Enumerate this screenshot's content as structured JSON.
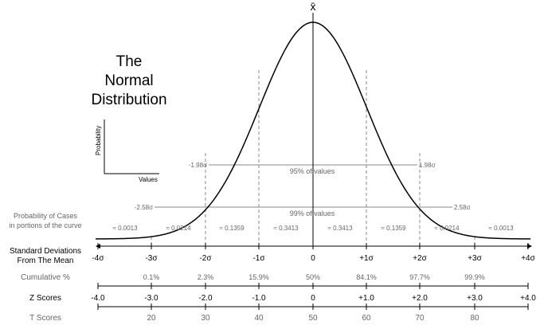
{
  "title": {
    "line1": "The",
    "line2": "Normal",
    "line3": "Distribution"
  },
  "mean_symbol": "x̄",
  "mini_axes": {
    "ylabel": "Probability",
    "xlabel": "Values"
  },
  "intervals": {
    "i95": {
      "left": "-1.98σ",
      "right": "1.98σ",
      "label": "95% of values"
    },
    "i99": {
      "left": "-2.58σ",
      "right": "2.58σ",
      "label": "99% of values"
    }
  },
  "row_titles": {
    "probability_line1": "Probability of Cases",
    "probability_line2": "in portions of the curve",
    "std_line1": "Standard Deviations",
    "std_line2": "From The Mean",
    "cumulative": "Cumulative %",
    "z": "Z Scores",
    "t": "T Scores"
  },
  "probabilities": [
    "≈ 0.0013",
    "≈ 0.0214",
    "≈ 0.1359",
    "≈ 0.3413",
    "≈ 0.3413",
    "≈ 0.1359",
    "≈ 0.0214",
    "≈ 0.0013"
  ],
  "std_ticks": [
    "-4σ",
    "-3σ",
    "-2σ",
    "-1σ",
    "0",
    "+1σ",
    "+2σ",
    "+3σ",
    "+4σ"
  ],
  "cumulative": [
    "0.1%",
    "2.3%",
    "15.9%",
    "50%",
    "84.1%",
    "97.7%",
    "99.9%"
  ],
  "z_scores": [
    "-4.0",
    "-3.0",
    "-2.0",
    "-1.0",
    "0",
    "+1.0",
    "+2.0",
    "+3.0",
    "+4.0"
  ],
  "t_scores": [
    "20",
    "30",
    "40",
    "50",
    "60",
    "70",
    "80"
  ],
  "colors": {
    "line": "#000000",
    "guide": "#888888",
    "text_grey": "#666666"
  }
}
